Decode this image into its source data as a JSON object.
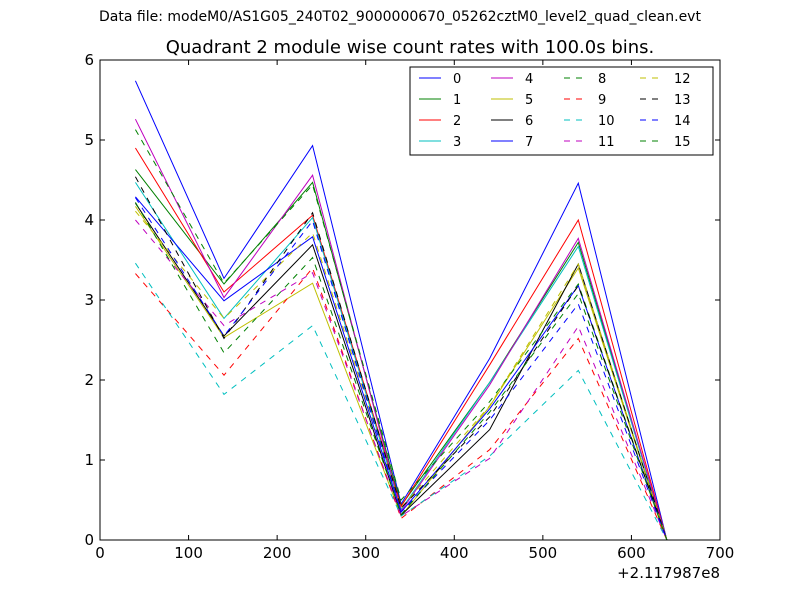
{
  "header": {
    "suptitle": "Data file: modeM0/AS1G05_240T02_9000000670_05262cztM0_level2_quad_clean.evt",
    "axes_title": "Quadrant 2 module wise count rates with 100.0s bins.",
    "x_offset": "+2.117987e8"
  },
  "chart_data": {
    "type": "line",
    "title": "Quadrant 2 module wise count rates with 100.0s bins.",
    "xlabel": "",
    "ylabel": "",
    "xlim": [
      0,
      700
    ],
    "ylim": [
      0,
      6
    ],
    "x_ticks": [
      "0",
      "100",
      "200",
      "300",
      "400",
      "500",
      "600",
      "700"
    ],
    "y_ticks": [
      "0",
      "1",
      "2",
      "3",
      "4",
      "5",
      "6"
    ],
    "x": [
      40,
      140,
      240,
      340,
      440,
      540,
      640
    ],
    "grid": false,
    "legend_position": "top-right",
    "legend_columns": 4,
    "series": [
      {
        "name": "0",
        "color": "#0000ff",
        "dash": "solid",
        "values": [
          5.74,
          3.27,
          4.93,
          0.45,
          2.27,
          4.46,
          0.0
        ]
      },
      {
        "name": "1",
        "color": "#008000",
        "dash": "solid",
        "values": [
          4.63,
          3.2,
          4.47,
          0.43,
          1.97,
          3.72,
          0.0
        ]
      },
      {
        "name": "2",
        "color": "#ff0000",
        "dash": "solid",
        "values": [
          4.9,
          3.1,
          4.06,
          0.42,
          2.19,
          4.0,
          0.0
        ]
      },
      {
        "name": "3",
        "color": "#00bfbf",
        "dash": "solid",
        "values": [
          4.47,
          2.77,
          4.03,
          0.38,
          1.97,
          3.67,
          0.0
        ]
      },
      {
        "name": "4",
        "color": "#bf00bf",
        "dash": "solid",
        "values": [
          5.26,
          3.03,
          4.56,
          0.36,
          1.94,
          3.77,
          0.0
        ]
      },
      {
        "name": "5",
        "color": "#bfbf00",
        "dash": "solid",
        "values": [
          4.17,
          2.53,
          3.21,
          0.3,
          1.67,
          3.4,
          0.0
        ]
      },
      {
        "name": "6",
        "color": "#000000",
        "dash": "solid",
        "values": [
          4.21,
          2.55,
          3.69,
          0.31,
          1.38,
          3.45,
          0.0
        ]
      },
      {
        "name": "7",
        "color": "#0000ff",
        "dash": "solid",
        "values": [
          4.29,
          2.99,
          3.79,
          0.35,
          1.64,
          3.18,
          0.0
        ]
      },
      {
        "name": "8",
        "color": "#008000",
        "dash": "dashed",
        "values": [
          5.13,
          3.21,
          4.44,
          0.5,
          1.73,
          3.2,
          0.0
        ]
      },
      {
        "name": "9",
        "color": "#ff0000",
        "dash": "dashed",
        "values": [
          3.33,
          2.06,
          3.4,
          0.27,
          1.13,
          2.52,
          0.0
        ]
      },
      {
        "name": "10",
        "color": "#00bfbf",
        "dash": "dashed",
        "values": [
          3.46,
          1.82,
          2.68,
          0.3,
          1.05,
          2.12,
          0.0
        ]
      },
      {
        "name": "11",
        "color": "#bf00bf",
        "dash": "dashed",
        "values": [
          4.0,
          2.68,
          3.34,
          0.3,
          1.02,
          2.67,
          0.0
        ]
      },
      {
        "name": "12",
        "color": "#bfbf00",
        "dash": "dashed",
        "values": [
          4.11,
          2.77,
          3.84,
          0.4,
          1.68,
          3.45,
          0.0
        ]
      },
      {
        "name": "13",
        "color": "#000000",
        "dash": "dashed",
        "values": [
          4.54,
          2.52,
          4.09,
          0.4,
          1.54,
          3.18,
          0.0
        ]
      },
      {
        "name": "14",
        "color": "#0000ff",
        "dash": "dashed",
        "values": [
          4.28,
          2.55,
          3.99,
          0.35,
          1.5,
          2.95,
          0.0
        ]
      },
      {
        "name": "15",
        "color": "#008000",
        "dash": "dashed",
        "values": [
          4.22,
          2.34,
          3.53,
          0.32,
          1.6,
          3.08,
          0.0
        ]
      }
    ]
  }
}
